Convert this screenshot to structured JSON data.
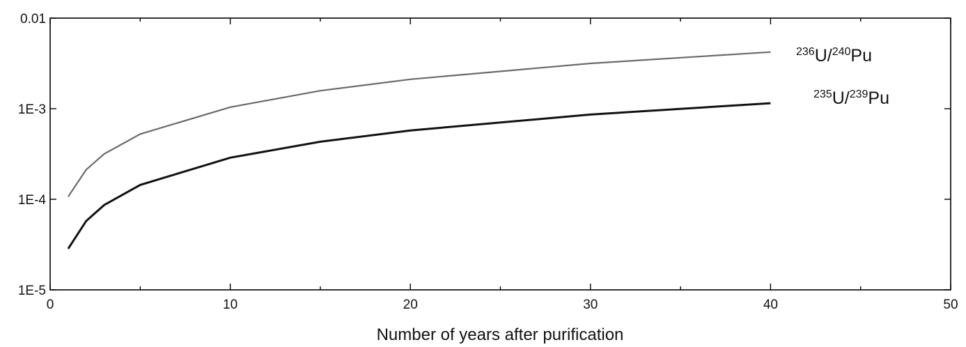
{
  "chart_data": {
    "type": "line",
    "xlabel": "Number of years after purification",
    "ylabel": "",
    "xlim": [
      0,
      50
    ],
    "ylim": [
      1e-05,
      0.01
    ],
    "yscale": "log",
    "x_ticks": [
      "0",
      "10",
      "20",
      "30",
      "40",
      "50"
    ],
    "y_ticks": [
      "1E-5",
      "1E-4",
      "1E-3",
      "0.01"
    ],
    "grid": false,
    "series": [
      {
        "name": "236U/240Pu",
        "label": {
          "sup1": "236",
          "base1": "U/",
          "sup2": "240",
          "base2": "Pu"
        },
        "color": "#6a6a6a",
        "x": [
          1,
          2,
          3,
          5,
          10,
          15,
          20,
          30,
          40
        ],
        "y": [
          0.000107,
          0.000212,
          0.000317,
          0.000525,
          0.00104,
          0.00158,
          0.00211,
          0.00316,
          0.00422
        ]
      },
      {
        "name": "235U/239Pu",
        "label": {
          "sup1": "235",
          "base1": "U/",
          "sup2": "239",
          "base2": "Pu"
        },
        "color": "#111111",
        "x": [
          1,
          2,
          3,
          5,
          10,
          15,
          20,
          30,
          40
        ],
        "y": [
          2.85e-05,
          5.75e-05,
          8.65e-05,
          0.000144,
          0.000288,
          0.000432,
          0.000575,
          0.000862,
          0.00115
        ]
      }
    ]
  }
}
